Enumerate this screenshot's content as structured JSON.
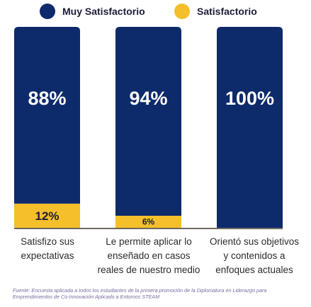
{
  "legend": {
    "items": [
      {
        "label": "Muy Satisfactorio",
        "color": "#0d2a6b"
      },
      {
        "label": "Satisfactorio",
        "color": "#f4bf2a"
      }
    ]
  },
  "chart_data": {
    "type": "bar",
    "stacked": true,
    "normalized": true,
    "categories": [
      "Satisfizo sus\nexpectativas",
      "Le permite aplicar lo\nenseñado en casos\nreales de nuestro medio",
      "Orientó sus objetivos\ny contenidos a\nenfoques actuales"
    ],
    "series": [
      {
        "name": "Muy Satisfactorio",
        "color": "#0d2a6b",
        "values": [
          88,
          94,
          100
        ],
        "labels": [
          "88%",
          "94%",
          "100%"
        ]
      },
      {
        "name": "Satisfactorio",
        "color": "#f4bf2a",
        "values": [
          12,
          6,
          0
        ],
        "labels": [
          "12%",
          "6%",
          ""
        ]
      }
    ],
    "ylim": [
      0,
      100
    ],
    "grid": false,
    "legend_position": "top"
  },
  "source": "Fuente: Encuesta aplicada a todos los estudiantes de la primera promoción de la Diplomatura en Liderazgo para\nEmprendimientos de Co-Innovación Aplicado a Entornos STEAM"
}
